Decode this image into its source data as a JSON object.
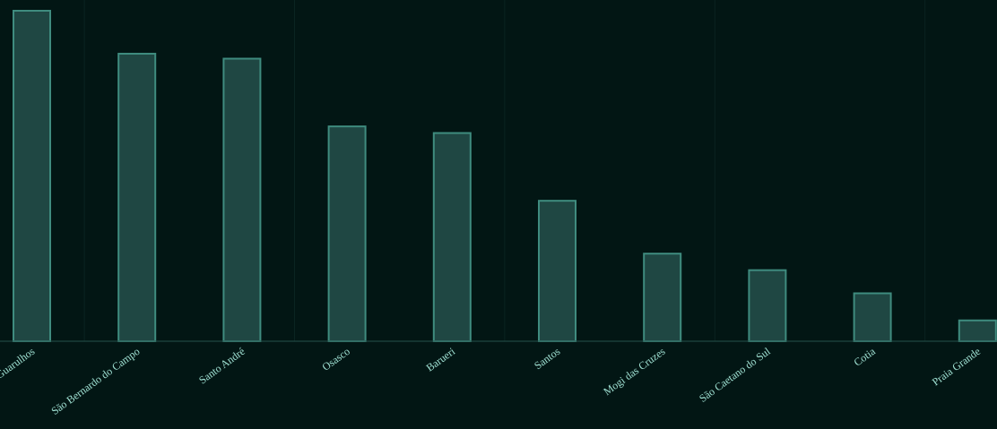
{
  "chart_data": {
    "type": "bar",
    "categories": [
      "Guarulhos",
      "São Bernardo do Campo",
      "Santo André",
      "Osasco",
      "Barueri",
      "Santos",
      "Mogi das Cruzes",
      "São Caetano do Sul",
      "Cotia",
      "Praia Grande"
    ],
    "values": [
      100,
      87,
      85.5,
      65,
      63,
      42.5,
      26.5,
      21.5,
      14.5,
      6.3
    ],
    "ylim": [
      0,
      100
    ],
    "grid": true,
    "legend": "none",
    "colors": {
      "background": "#021614",
      "bar_fill": "#1f4743",
      "bar_stroke": "#3f8c7f",
      "label": "#9fe0d2"
    }
  }
}
